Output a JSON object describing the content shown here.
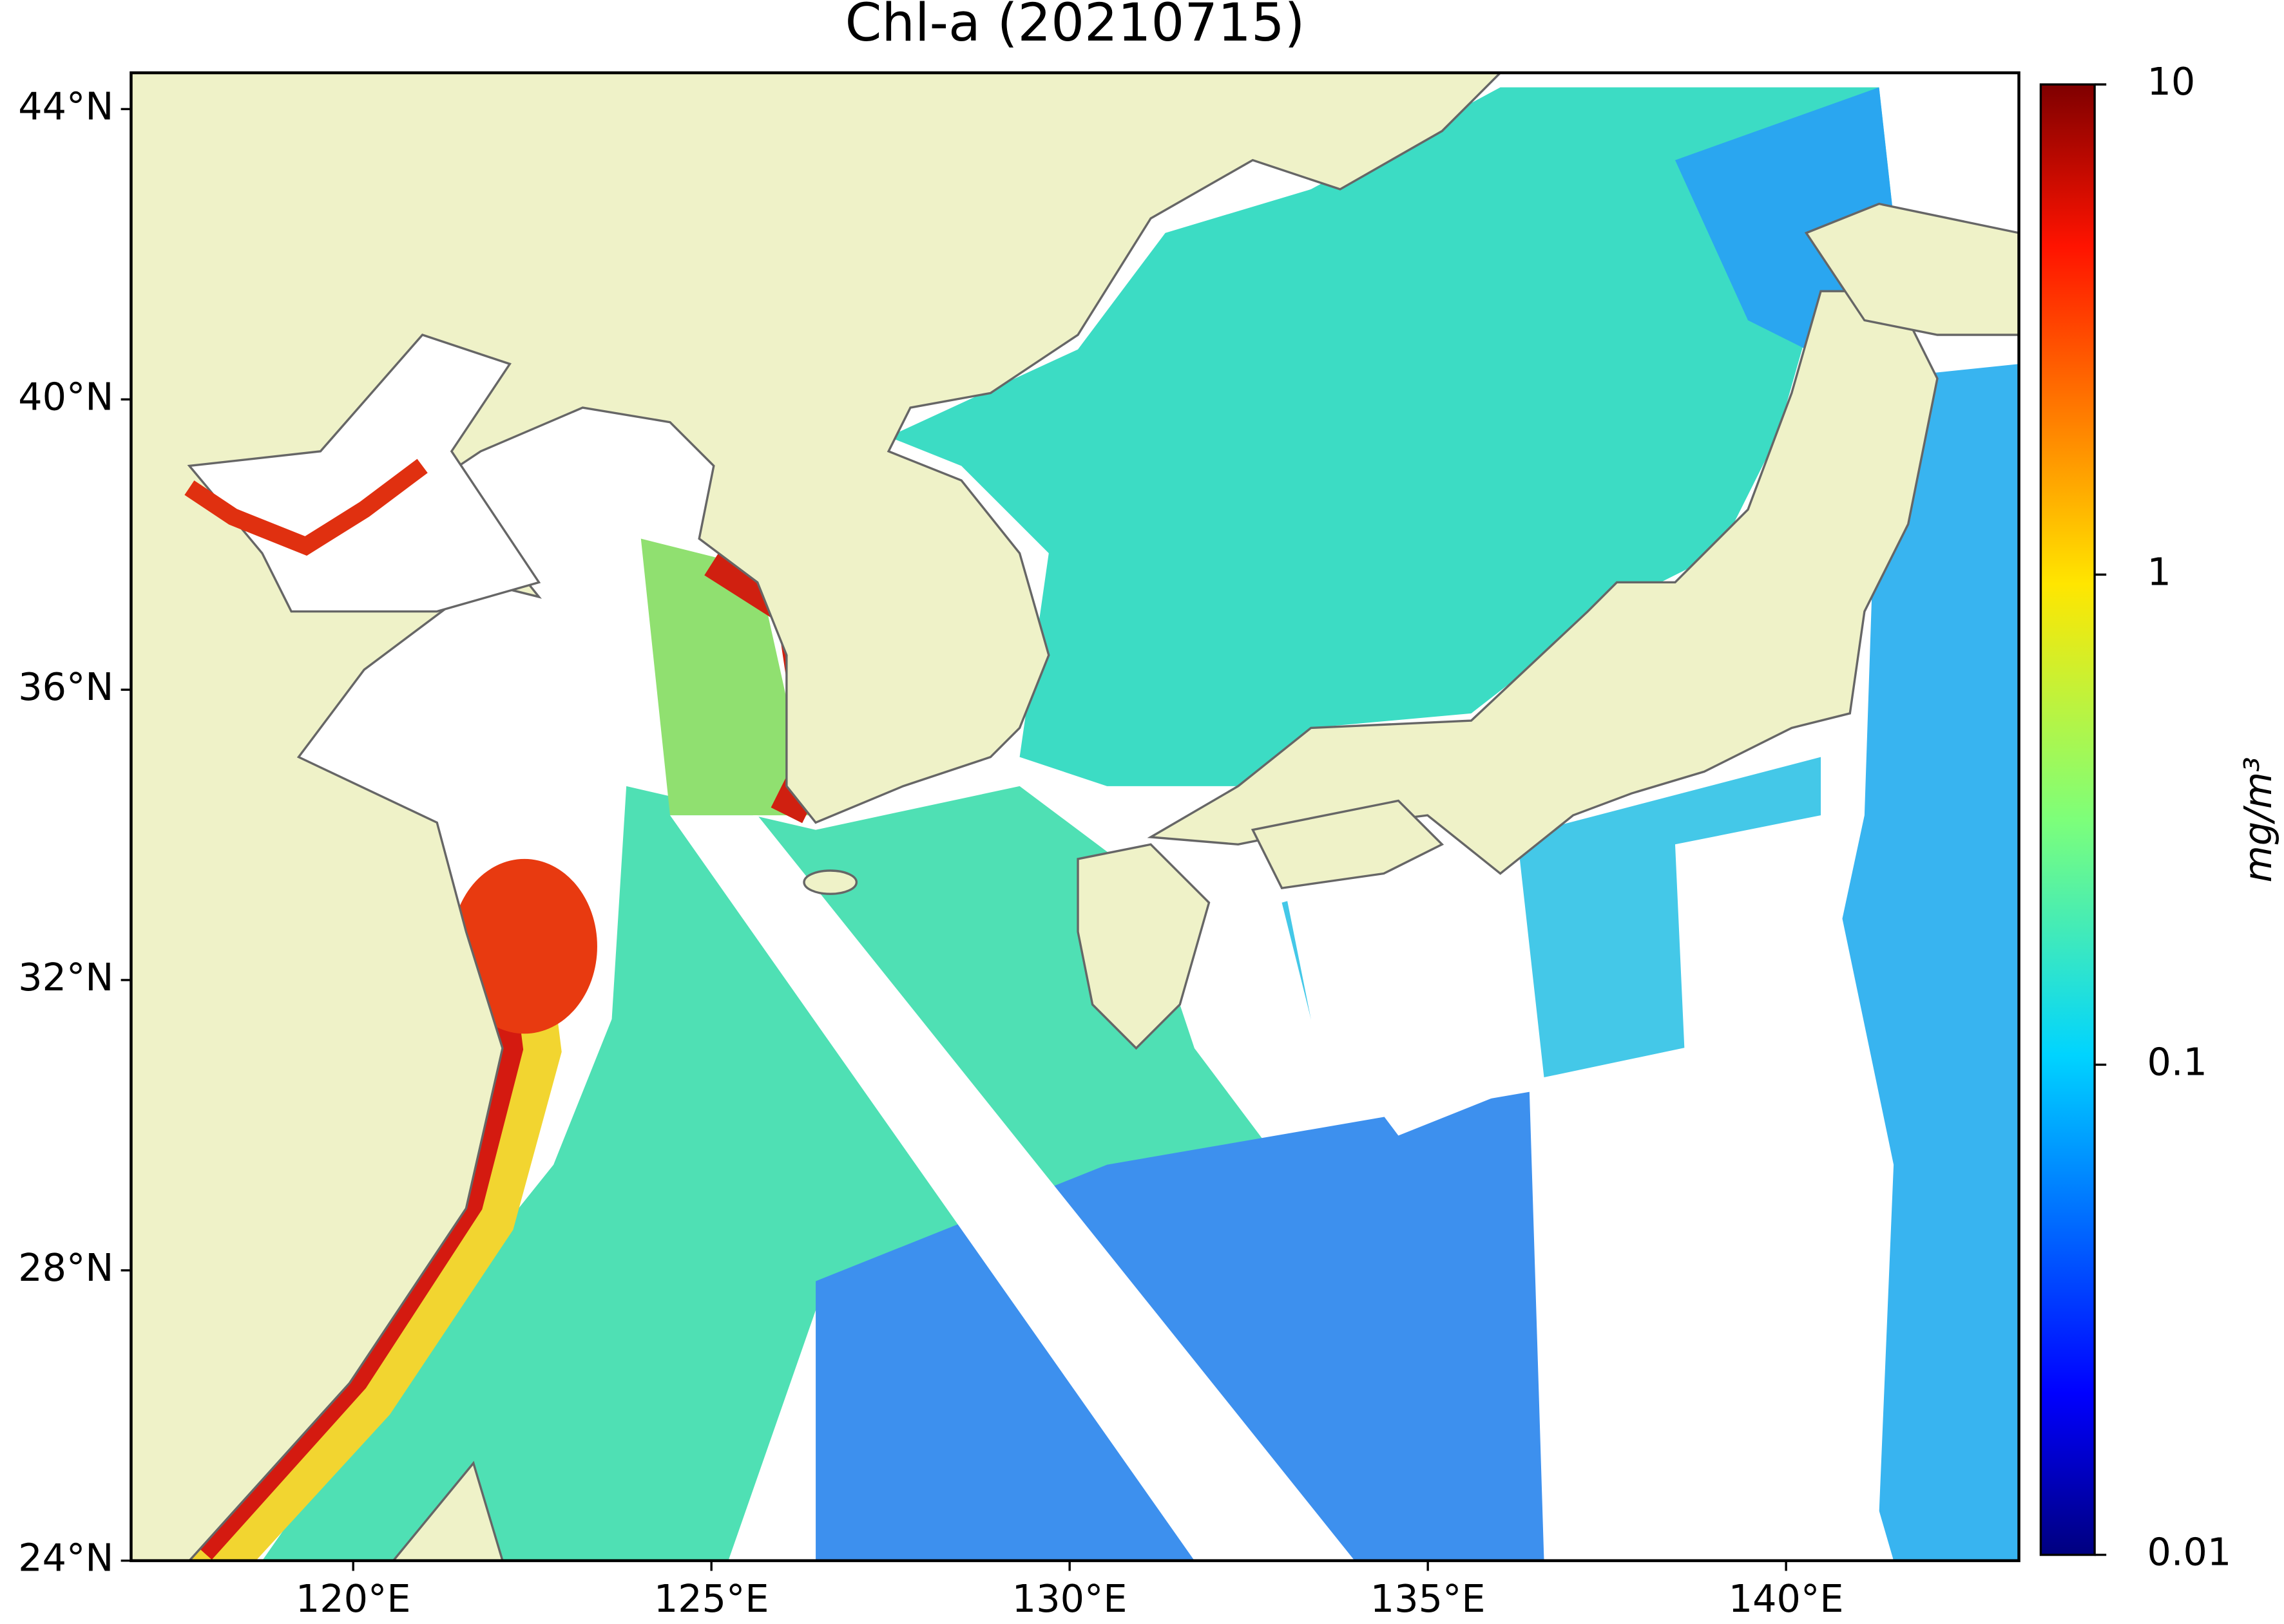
{
  "title": "Chl-a (20210715)",
  "map": {
    "xlim": [
      116.9,
      143.25
    ],
    "ylim": [
      24,
      44.5
    ],
    "xticks": [
      {
        "value": 120,
        "label": "120°E"
      },
      {
        "value": 125,
        "label": "125°E"
      },
      {
        "value": 130,
        "label": "130°E"
      },
      {
        "value": 135,
        "label": "135°E"
      },
      {
        "value": 140,
        "label": "140°E"
      }
    ],
    "yticks": [
      {
        "value": 24,
        "label": "24°N"
      },
      {
        "value": 28,
        "label": "28°N"
      },
      {
        "value": 32,
        "label": "32°N"
      },
      {
        "value": 36,
        "label": "36°N"
      },
      {
        "value": 40,
        "label": "40°N"
      },
      {
        "value": 44,
        "label": "44°N"
      }
    ]
  },
  "colorbar": {
    "scale": "log",
    "lim": [
      0.01,
      10
    ],
    "ticks": [
      0.01,
      0.1,
      1,
      10
    ],
    "label": "mg/m³"
  }
}
